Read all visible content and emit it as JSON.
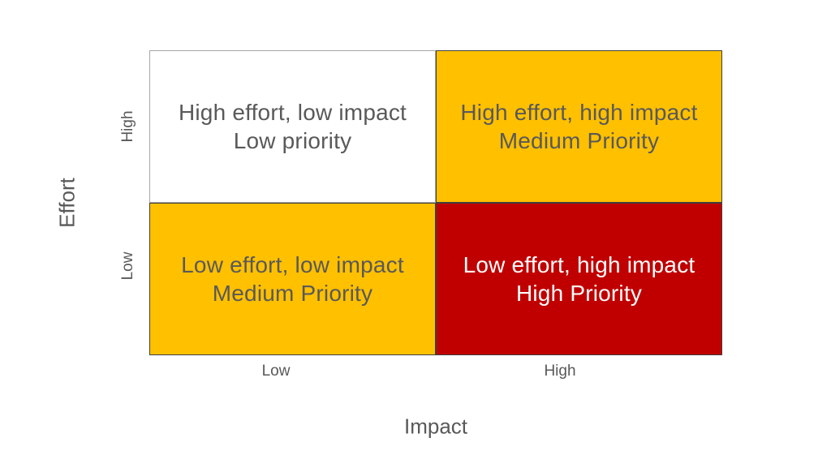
{
  "matrix": {
    "y_axis": {
      "label": "Effort",
      "top_tick": "High",
      "bottom_tick": "Low"
    },
    "x_axis": {
      "label": "Impact",
      "left_tick": "Low",
      "right_tick": "High"
    },
    "quadrants": {
      "top_left": {
        "line1": "High effort, low impact",
        "line2": "Low priority",
        "background": "#FFFFFF",
        "text_color": "#595959"
      },
      "top_right": {
        "line1": "High effort, high impact",
        "line2": "Medium Priority",
        "background": "#FFC000",
        "text_color": "#595959"
      },
      "bottom_left": {
        "line1": "Low effort, low impact",
        "line2": "Medium Priority",
        "background": "#FFC000",
        "text_color": "#595959"
      },
      "bottom_right": {
        "line1": "Low effort, high impact",
        "line2": "High Priority",
        "background": "#C00000",
        "text_color": "#FFFFFF"
      }
    },
    "colors": {
      "gold": "#FFC000",
      "red": "#C00000",
      "text_gray": "#595959",
      "white_cell_border": "#A6A6A6",
      "dark_cell_border": "#3F3F3F"
    }
  }
}
